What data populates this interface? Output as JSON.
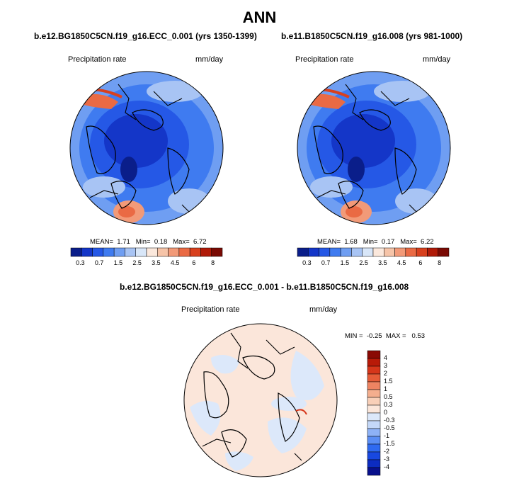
{
  "title": "ANN",
  "colors": {
    "seq": [
      "#0a1e8a",
      "#1436c8",
      "#2558e6",
      "#3f7bf0",
      "#6f9ef2",
      "#a8c4f4",
      "#d8e6f8",
      "#fbe8dc",
      "#f6c4a8",
      "#f29a78",
      "#ea6a44",
      "#d8401e",
      "#b01a08",
      "#7a0a04"
    ],
    "diff": [
      "#08108c",
      "#0c2cc0",
      "#1848e0",
      "#2f6af0",
      "#5b8ef4",
      "#8eb2f6",
      "#c4d8f8",
      "#dce8fa",
      "#fbe6da",
      "#f8cfb8",
      "#f4ae8e",
      "#ee8462",
      "#e65c38",
      "#d6361a",
      "#b81a08",
      "#8a0a04"
    ]
  },
  "panels": [
    {
      "title": "b.e12.BG1850C5CN.f19_g16.ECC_0.001 (yrs 1350-1399)",
      "left_label": "Precipitation rate",
      "right_label": "mm/day",
      "stats": {
        "mean_label": "MEAN=",
        "mean": "1.71",
        "min_label": "Min=",
        "min": "0.18",
        "max_label": "Max=",
        "max": "6.72"
      },
      "colorbar_ticks": [
        "0.3",
        "0.7",
        "1.5",
        "2.5",
        "3.5",
        "4.5",
        "6",
        "8"
      ]
    },
    {
      "title": "b.e11.B1850C5CN.f19_g16.008 (yrs 981-1000)",
      "left_label": "Precipitation rate",
      "right_label": "mm/day",
      "stats": {
        "mean_label": "MEAN=",
        "mean": "1.68",
        "min_label": "Min=",
        "min": "0.17",
        "max_label": "Max=",
        "max": "6.22"
      },
      "colorbar_ticks": [
        "0.3",
        "0.7",
        "1.5",
        "2.5",
        "3.5",
        "4.5",
        "6",
        "8"
      ]
    },
    {
      "title": "b.e12.BG1850C5CN.f19_g16.ECC_0.001 - b.e11.B1850C5CN.f19_g16.008",
      "left_label": "Precipitation rate",
      "right_label": "mm/day",
      "stats": {
        "min_label": "MIN =",
        "min": "-0.25",
        "max_label": "MAX =",
        "max": "0.53"
      },
      "colorbar_ticks": [
        "4",
        "3",
        "2",
        "1.5",
        "1",
        "0.5",
        "0.3",
        "0",
        "-0.3",
        "-0.5",
        "-1",
        "-1.5",
        "-2",
        "-3",
        "-4"
      ]
    }
  ],
  "chart_data": [
    {
      "type": "heatmap",
      "title": "b.e12.BG1850C5CN.f19_g16.ECC_0.001 (yrs 1350-1399)",
      "variable": "Precipitation rate",
      "units": "mm/day",
      "projection": "north polar stereographic",
      "mean": 1.71,
      "min": 0.18,
      "max": 6.72,
      "levels": [
        0.3,
        0.7,
        1.5,
        2.5,
        3.5,
        4.5,
        6,
        8
      ]
    },
    {
      "type": "heatmap",
      "title": "b.e11.B1850C5CN.f19_g16.008 (yrs 981-1000)",
      "variable": "Precipitation rate",
      "units": "mm/day",
      "projection": "north polar stereographic",
      "mean": 1.68,
      "min": 0.17,
      "max": 6.22,
      "levels": [
        0.3,
        0.7,
        1.5,
        2.5,
        3.5,
        4.5,
        6,
        8
      ]
    },
    {
      "type": "heatmap",
      "title": "b.e12.BG1850C5CN.f19_g16.ECC_0.001 - b.e11.B1850C5CN.f19_g16.008",
      "variable": "Precipitation rate",
      "units": "mm/day",
      "projection": "north polar stereographic",
      "min": -0.25,
      "max": 0.53,
      "levels": [
        -4,
        -3,
        -2,
        -1.5,
        -1,
        -0.5,
        -0.3,
        0,
        0.3,
        0.5,
        1,
        1.5,
        2,
        3,
        4
      ]
    }
  ]
}
